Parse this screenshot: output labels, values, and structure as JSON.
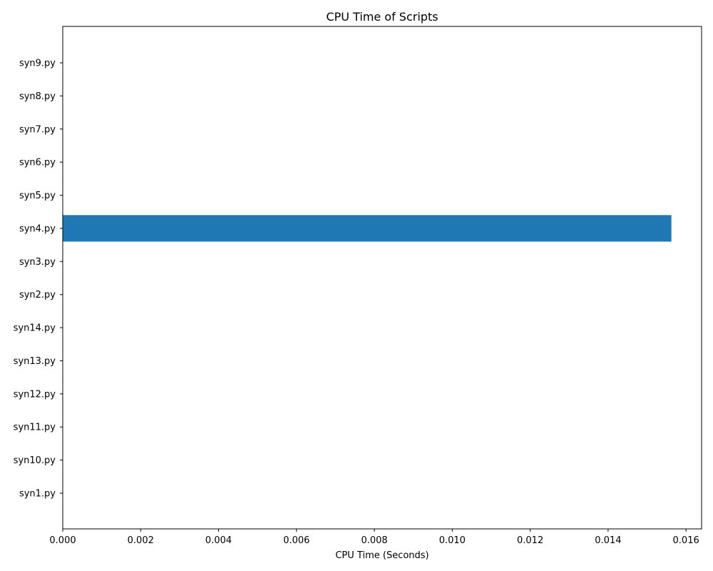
{
  "chart_data": {
    "type": "bar",
    "orientation": "horizontal",
    "title": "CPU Time of Scripts",
    "xlabel": "CPU Time (Seconds)",
    "ylabel": "",
    "categories": [
      "syn1.py",
      "syn10.py",
      "syn11.py",
      "syn12.py",
      "syn13.py",
      "syn14.py",
      "syn2.py",
      "syn3.py",
      "syn4.py",
      "syn5.py",
      "syn6.py",
      "syn7.py",
      "syn8.py",
      "syn9.py"
    ],
    "values": [
      0,
      0,
      0,
      0,
      0,
      0,
      0,
      0,
      0.015625,
      0,
      0,
      0,
      0,
      0
    ],
    "xlim": [
      0,
      0.0164
    ],
    "xticks": [
      "0.000",
      "0.002",
      "0.004",
      "0.006",
      "0.008",
      "0.010",
      "0.012",
      "0.014",
      "0.016"
    ],
    "bar_color": "#1f77b4",
    "grid": false,
    "legend": "none"
  }
}
